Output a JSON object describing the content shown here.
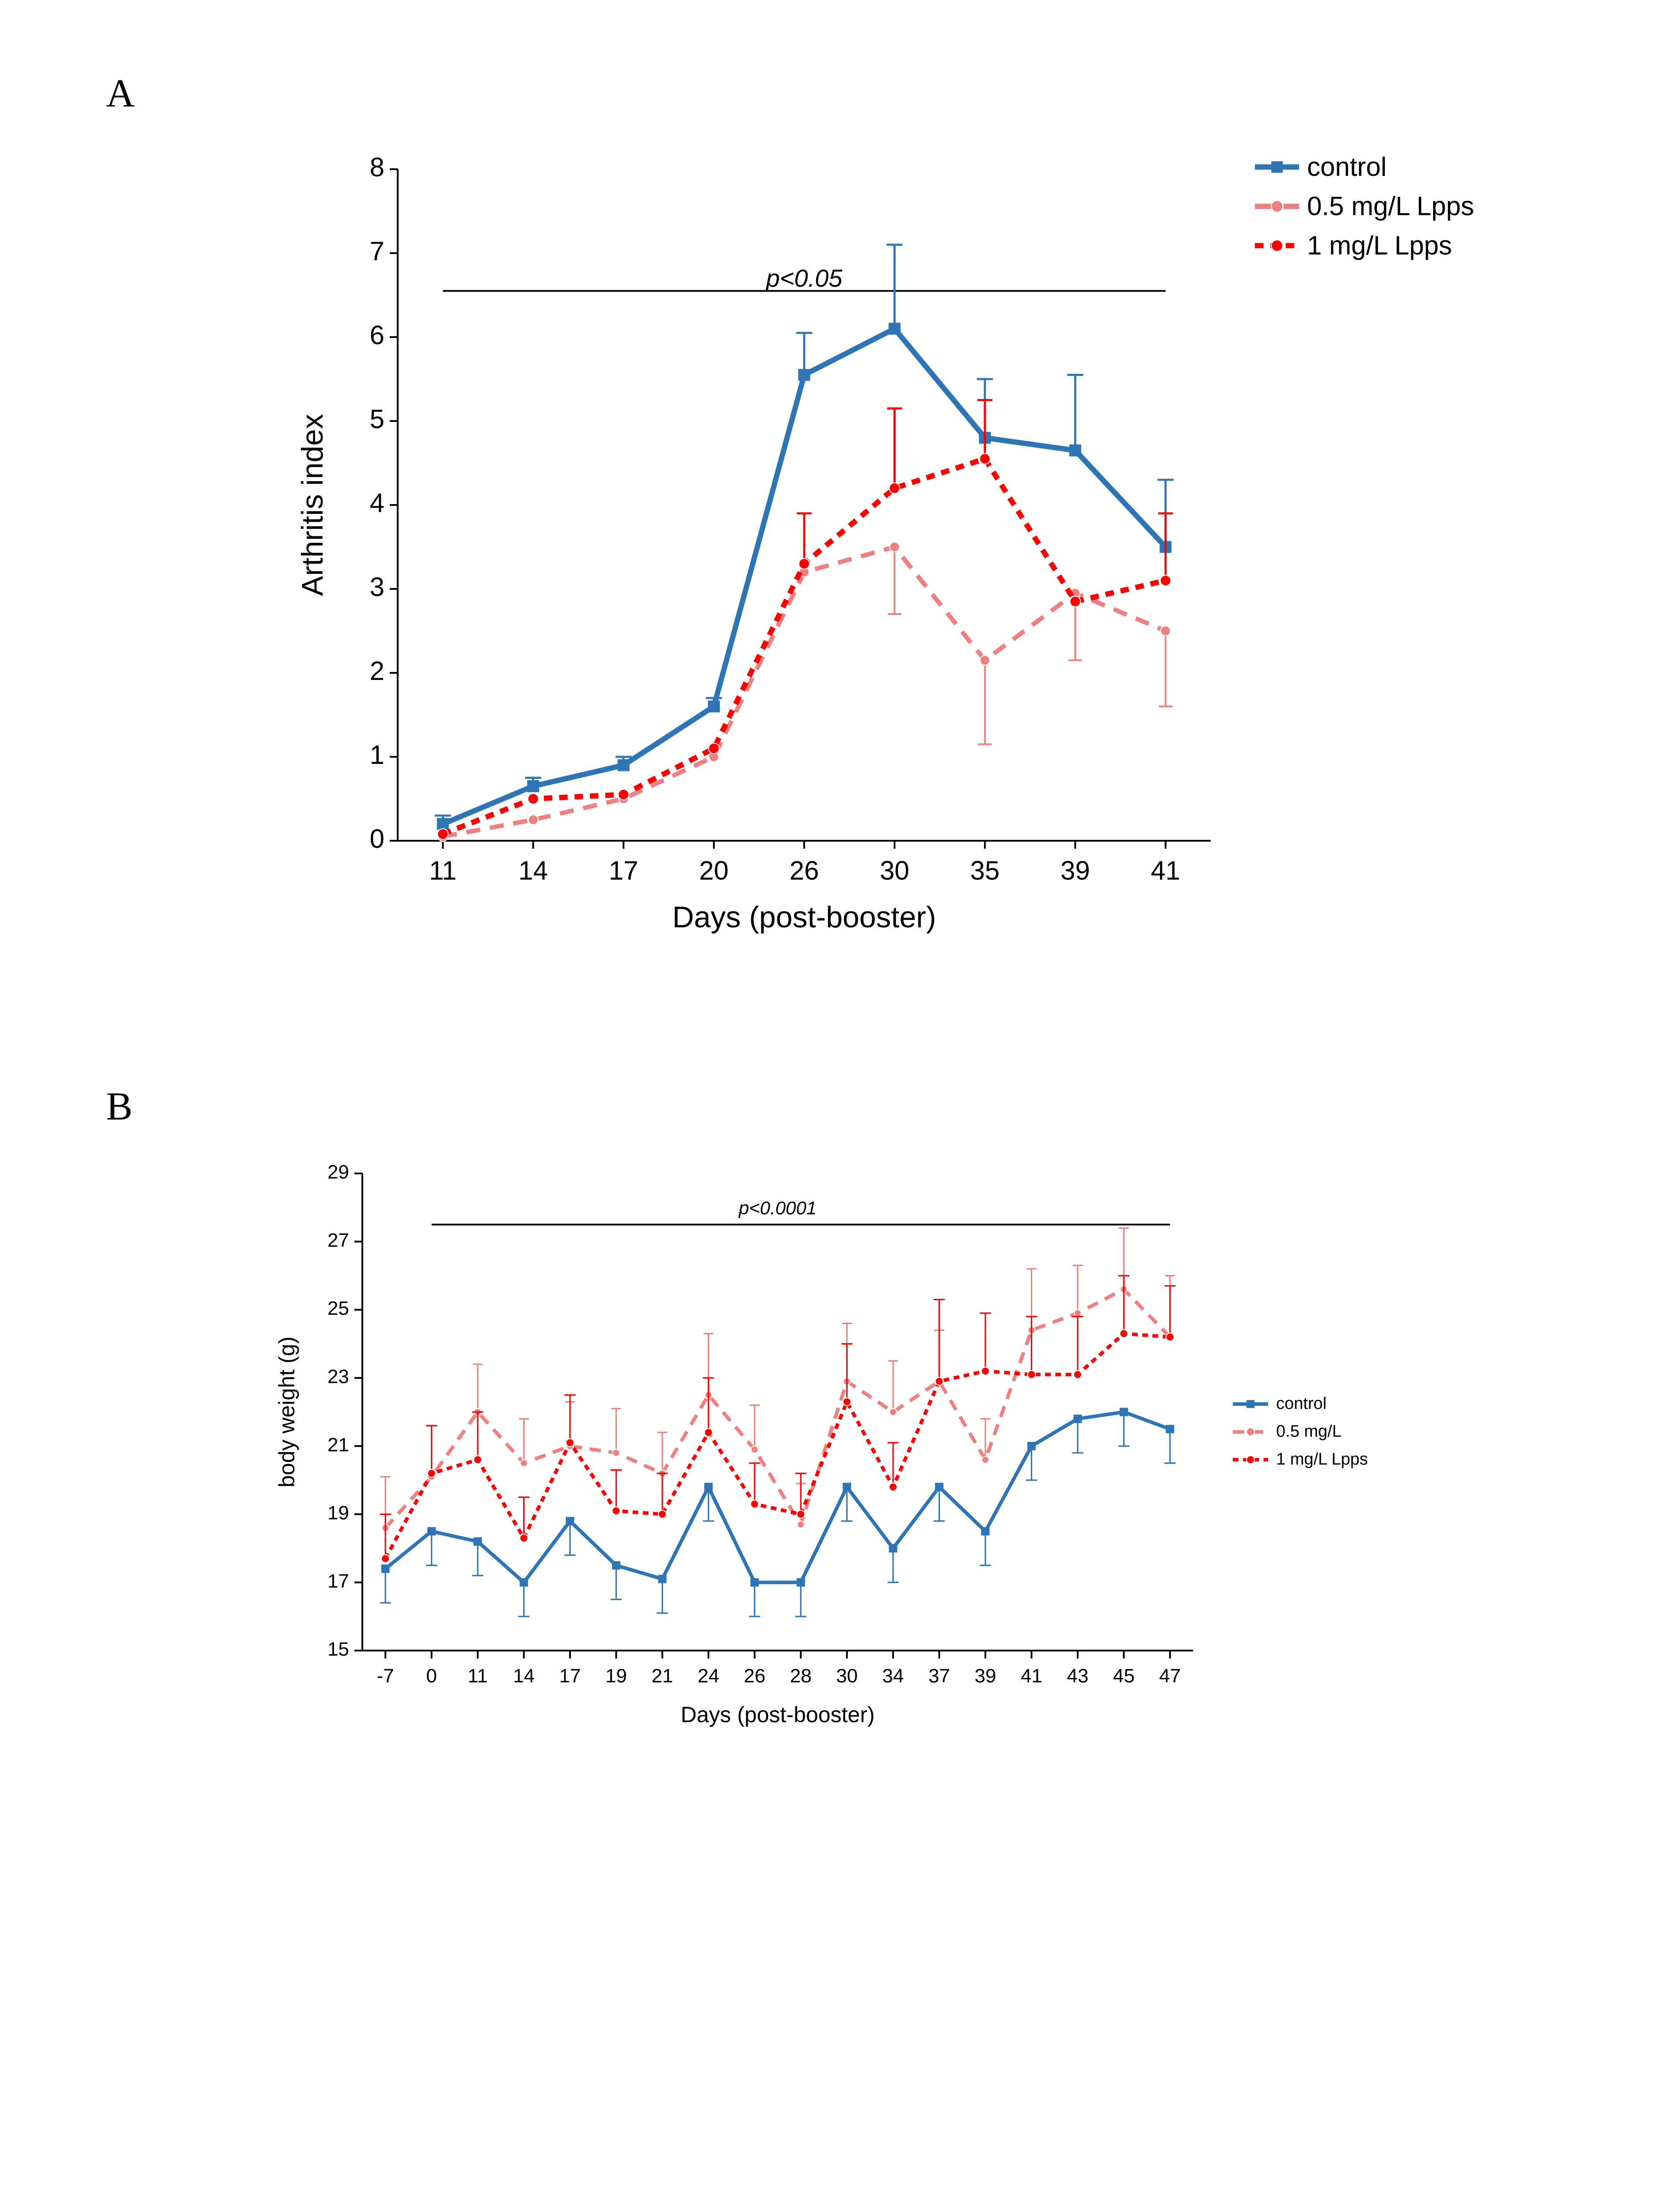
{
  "panelA": {
    "label": "A",
    "chart": {
      "type": "line",
      "xlabel": "Days (post-booster)",
      "ylabel": "Arthritis index",
      "label_fontsize": 68,
      "tick_fontsize": 60,
      "ylim": [
        0,
        8
      ],
      "ytick_step": 1,
      "x_categories": [
        "11",
        "14",
        "17",
        "20",
        "26",
        "30",
        "35",
        "39",
        "41"
      ],
      "significance_text": "p<0.05",
      "significance_fontsize": 56,
      "significance_y": 6.6,
      "significance_bar_y": 6.55,
      "significance_bar_xstart": 0,
      "significance_bar_xend": 8,
      "background_color": "#ffffff",
      "axis_color": "#000000",
      "series": [
        {
          "name": "control",
          "color": "#2e75b6",
          "marker": "square",
          "marker_size": 26,
          "line_width": 12,
          "dash": "none",
          "values": [
            0.2,
            0.65,
            0.9,
            1.6,
            5.55,
            6.1,
            4.8,
            4.65,
            3.5
          ],
          "err_upper": [
            0.1,
            0.1,
            0.1,
            0.1,
            0.5,
            1.0,
            0.7,
            0.9,
            0.8
          ],
          "err_lower": [
            0.0,
            0.0,
            0.0,
            0.0,
            0.0,
            0.0,
            0.0,
            0.0,
            0.0
          ]
        },
        {
          "name": "0.5 mg/L Lpps",
          "color": "#f08080",
          "marker": "circle",
          "marker_size": 22,
          "line_width": 10,
          "dash": "long",
          "values": [
            0.05,
            0.25,
            0.5,
            1.0,
            3.2,
            3.5,
            2.15,
            2.95,
            2.5
          ],
          "err_upper": [
            0.0,
            0.0,
            0.0,
            0.0,
            0.0,
            0.0,
            0.0,
            0.0,
            0.0
          ],
          "err_lower": [
            0.0,
            0.0,
            0.0,
            0.0,
            0.0,
            0.8,
            1.0,
            0.8,
            0.9
          ]
        },
        {
          "name": "1 mg/L Lpps",
          "color": "#ff0000",
          "marker": "circle",
          "marker_size": 24,
          "line_width": 12,
          "dash": "short",
          "values": [
            0.08,
            0.5,
            0.55,
            1.1,
            3.3,
            4.2,
            4.55,
            2.85,
            3.1
          ],
          "err_upper": [
            0.0,
            0.0,
            0.0,
            0.0,
            0.6,
            0.95,
            0.7,
            0.0,
            0.8
          ],
          "err_lower": [
            0.0,
            0.0,
            0.0,
            0.0,
            0.0,
            0.0,
            0.0,
            0.0,
            0.0
          ]
        }
      ]
    },
    "legend": {
      "position": "top-right",
      "label_fontsize": 60,
      "items": [
        {
          "label": "control",
          "color": "#2e75b6",
          "marker": "square",
          "dash": "none"
        },
        {
          "label": "0.5 mg/L Lpps",
          "color": "#f08080",
          "marker": "circle",
          "dash": "long"
        },
        {
          "label": "1 mg/L Lpps",
          "color": "#ff0000",
          "marker": "circle",
          "dash": "short"
        }
      ]
    }
  },
  "panelB": {
    "label": "B",
    "chart": {
      "type": "line",
      "xlabel": "Days (post-booster)",
      "ylabel": "body weight (g)",
      "label_fontsize": 50,
      "tick_fontsize": 44,
      "ylim": [
        15,
        29
      ],
      "ytick_step": 2,
      "x_categories": [
        "-7",
        "0",
        "11",
        "14",
        "17",
        "19",
        "21",
        "24",
        "26",
        "28",
        "30",
        "34",
        "37",
        "39",
        "41",
        "43",
        "45",
        "47"
      ],
      "significance_text": "p<0.0001",
      "significance_fontsize": 42,
      "significance_y": 27.8,
      "significance_bar_y": 27.5,
      "significance_bar_xstart": 1,
      "significance_bar_xend": 17,
      "background_color": "#ffffff",
      "axis_color": "#000000",
      "series": [
        {
          "name": "control",
          "color": "#2e75b6",
          "marker": "square",
          "marker_size": 18,
          "line_width": 8,
          "dash": "none",
          "values": [
            17.4,
            18.5,
            18.2,
            17.0,
            18.8,
            17.5,
            17.1,
            19.8,
            17.0,
            17.0,
            19.8,
            18.0,
            19.8,
            18.5,
            21.0,
            21.8,
            22.0,
            21.5
          ],
          "err_upper": [
            0.0,
            0.0,
            0.0,
            0.0,
            0.0,
            0.0,
            0.0,
            0.0,
            0.0,
            0.0,
            0.0,
            0.0,
            0.0,
            0.0,
            0.0,
            0.0,
            0.0,
            0.0
          ],
          "err_lower": [
            1.0,
            1.0,
            1.0,
            1.0,
            1.0,
            1.0,
            1.0,
            1.0,
            1.0,
            1.0,
            1.0,
            1.0,
            1.0,
            1.0,
            1.0,
            1.0,
            1.0,
            1.0
          ]
        },
        {
          "name": "0.5 mg/L",
          "color": "#f08080",
          "marker": "circle",
          "marker_size": 16,
          "line_width": 8,
          "dash": "long",
          "values": [
            18.6,
            20.1,
            22.0,
            20.5,
            21.0,
            20.8,
            20.2,
            22.5,
            20.9,
            18.7,
            22.9,
            22.0,
            22.9,
            20.6,
            24.4,
            24.9,
            25.6,
            24.2
          ],
          "err_upper": [
            1.5,
            1.5,
            1.4,
            1.3,
            1.3,
            1.3,
            1.2,
            1.8,
            1.3,
            1.2,
            1.7,
            1.5,
            1.5,
            1.2,
            1.8,
            1.4,
            1.8,
            1.8
          ],
          "err_lower": [
            0.0,
            0.0,
            0.0,
            0.0,
            0.0,
            0.0,
            0.0,
            0.0,
            0.0,
            0.0,
            0.0,
            0.0,
            0.0,
            0.0,
            0.0,
            0.0,
            0.0,
            0.0
          ]
        },
        {
          "name": "1 mg/L Lpps",
          "color": "#ff0000",
          "marker": "circle",
          "marker_size": 18,
          "line_width": 8,
          "dash": "short",
          "values": [
            17.7,
            20.2,
            20.6,
            18.3,
            21.1,
            19.1,
            19.0,
            21.4,
            19.3,
            19.0,
            22.3,
            19.8,
            22.9,
            23.2,
            23.1,
            23.1,
            24.3,
            24.2
          ],
          "err_upper": [
            1.3,
            1.4,
            1.4,
            1.2,
            1.4,
            1.2,
            1.2,
            1.6,
            1.2,
            1.2,
            1.7,
            1.3,
            2.4,
            1.7,
            1.7,
            1.7,
            1.7,
            1.5
          ],
          "err_lower": [
            0.0,
            0.0,
            0.0,
            0.0,
            0.0,
            0.0,
            0.0,
            0.0,
            0.0,
            0.0,
            0.0,
            0.0,
            0.0,
            0.0,
            0.0,
            0.0,
            0.0,
            0.0
          ]
        }
      ]
    },
    "legend": {
      "position": "right-middle",
      "label_fontsize": 38,
      "items": [
        {
          "label": "control",
          "color": "#2e75b6",
          "marker": "square",
          "dash": "none"
        },
        {
          "label": "0.5 mg/L",
          "color": "#f08080",
          "marker": "circle",
          "dash": "long"
        },
        {
          "label": "1 mg/L Lpps",
          "color": "#ff0000",
          "marker": "circle",
          "dash": "short"
        }
      ]
    }
  }
}
